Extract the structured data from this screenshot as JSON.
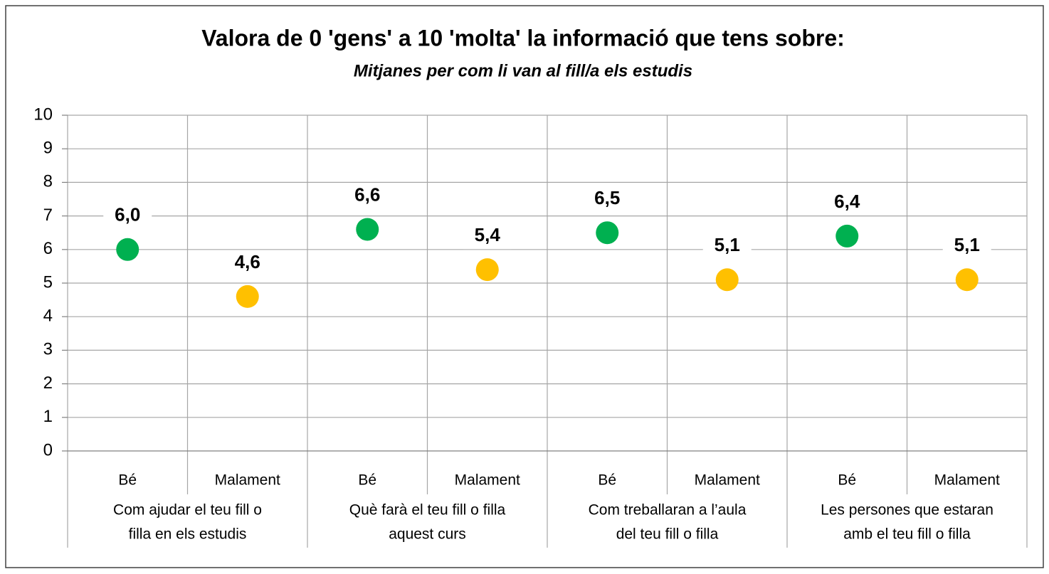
{
  "chart_data": {
    "type": "dot",
    "title": "Valora de 0 'gens' a 10 'molta' la informació que tens sobre:",
    "subtitle": "Mitjanes per com li van al fill/a els estudis",
    "categories": [
      "Bé",
      "Malament",
      "Bé",
      "Malament",
      "Bé",
      "Malament",
      "Bé",
      "Malament"
    ],
    "groups": [
      [
        "Com ajudar el teu fill o",
        "filla en els estudis"
      ],
      [
        "Què farà el teu fill o filla",
        "aquest curs"
      ],
      [
        "Com treballaran a l’aula",
        "del teu fill o filla"
      ],
      [
        "Les persones que estaran",
        "amb el teu fill o filla"
      ]
    ],
    "values": [
      6.0,
      4.6,
      6.6,
      5.4,
      6.5,
      5.1,
      6.4,
      5.1
    ],
    "value_labels": [
      "6,0",
      "4,6",
      "6,6",
      "5,4",
      "6,5",
      "5,1",
      "6,4",
      "5,1"
    ],
    "colors": [
      "#00b050",
      "#ffc000",
      "#00b050",
      "#ffc000",
      "#00b050",
      "#ffc000",
      "#00b050",
      "#ffc000"
    ],
    "ylim": [
      0,
      10
    ],
    "yticks": [
      0,
      1,
      2,
      3,
      4,
      5,
      6,
      7,
      8,
      9,
      10
    ],
    "grid": true
  }
}
